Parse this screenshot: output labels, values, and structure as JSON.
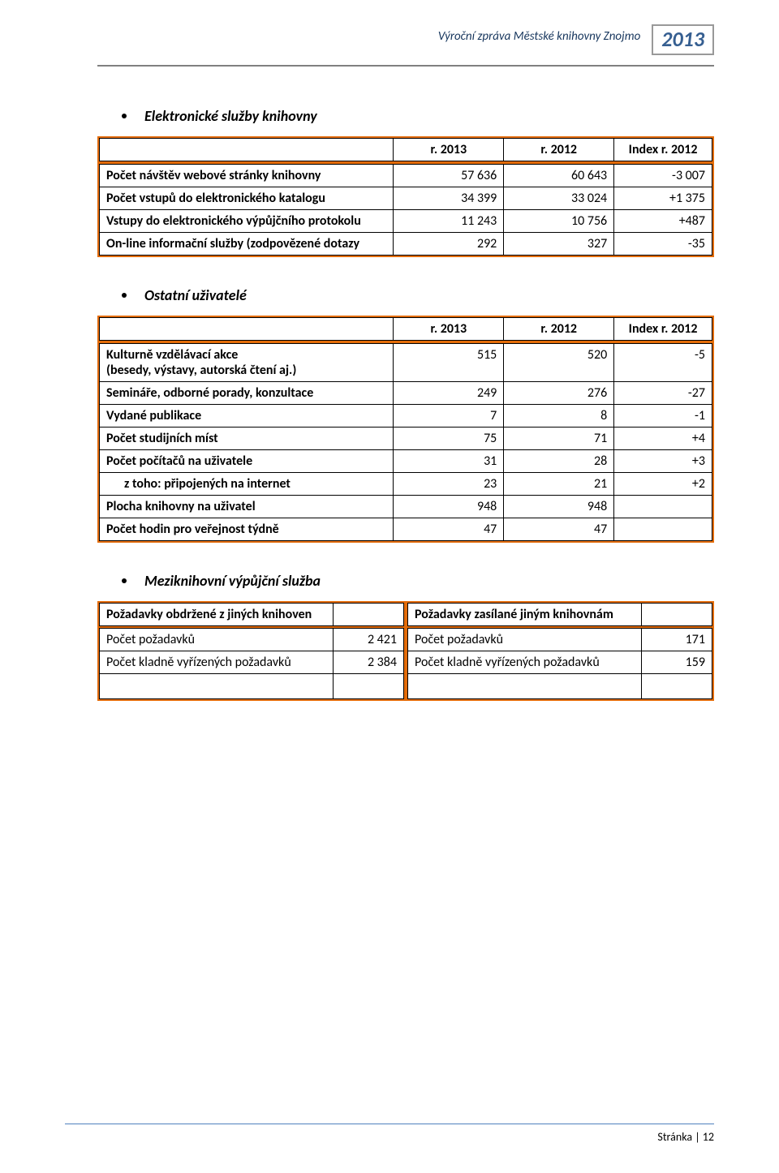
{
  "header": {
    "title": "Výroční zpráva Městské knihovny Znojmo",
    "year": "2013"
  },
  "section1": {
    "heading": "Elektronické služby knihovny",
    "columns": [
      "r. 2013",
      "r. 2012",
      "Index r. 2012"
    ],
    "rows": [
      {
        "label": "Počet návštěv webové stránky knihovny",
        "c1": "57 636",
        "c2": "60 643",
        "c3": "-3 007"
      },
      {
        "label": "Počet vstupů do elektronického katalogu",
        "c1": "34 399",
        "c2": "33 024",
        "c3": "+1 375"
      },
      {
        "label": "Vstupy do elektronického výpůjčního protokolu",
        "c1": "11 243",
        "c2": "10 756",
        "c3": "+487"
      },
      {
        "label": "On-line informační služby (zodpovězené dotazy",
        "c1": "292",
        "c2": "327",
        "c3": "-35"
      }
    ]
  },
  "section2": {
    "heading": "Ostatní uživatelé",
    "columns": [
      "r. 2013",
      "r. 2012",
      "Index r. 2012"
    ],
    "rows": [
      {
        "label": "Kulturně vzdělávací akce\n(besedy, výstavy, autorská čtení aj.)",
        "c1": "515",
        "c2": "520",
        "c3": "-5"
      },
      {
        "label": "Semináře, odborné porady, konzultace",
        "c1": "249",
        "c2": "276",
        "c3": "-27"
      },
      {
        "label": "Vydané publikace",
        "c1": "7",
        "c2": "8",
        "c3": "-1"
      },
      {
        "label": "Počet studijních míst",
        "c1": "75",
        "c2": "71",
        "c3": "+4"
      },
      {
        "label": "Počet počítačů na uživatele",
        "c1": "31",
        "c2": "28",
        "c3": "+3"
      },
      {
        "label": "z toho: připojených na internet",
        "c1": "23",
        "c2": "21",
        "c3": "+2",
        "indent": true
      },
      {
        "label": "Plocha knihovny na uživatel",
        "c1": "948",
        "c2": "948",
        "c3": ""
      },
      {
        "label": "Počet hodin pro veřejnost týdně",
        "c1": "47",
        "c2": "47",
        "c3": ""
      }
    ]
  },
  "section3": {
    "heading": "Meziknihovní výpůjční služba",
    "left": {
      "title": "Požadavky obdržené z jiných knihoven",
      "rows": [
        {
          "label": "Počet požadavků",
          "val": "2 421"
        },
        {
          "label": "Počet kladně vyřízených požadavků",
          "val": "2 384"
        }
      ]
    },
    "right": {
      "title": "Požadavky zasílané jiným knihovnám",
      "rows": [
        {
          "label": "Počet požadavků",
          "val": "171"
        },
        {
          "label": "Počet kladně vyřízených požadavků",
          "val": "159"
        }
      ]
    }
  },
  "footer": {
    "text": "Stránka | 12"
  },
  "styling": {
    "accent_border": "#e36c09",
    "header_text_color": "#17365d",
    "year_color": "#365f91",
    "header_grey": "#808080",
    "footer_line": "#4f81bd",
    "font_family": "Calibri",
    "heading_fontsize_pt": 14,
    "body_fontsize_pt": 12
  }
}
